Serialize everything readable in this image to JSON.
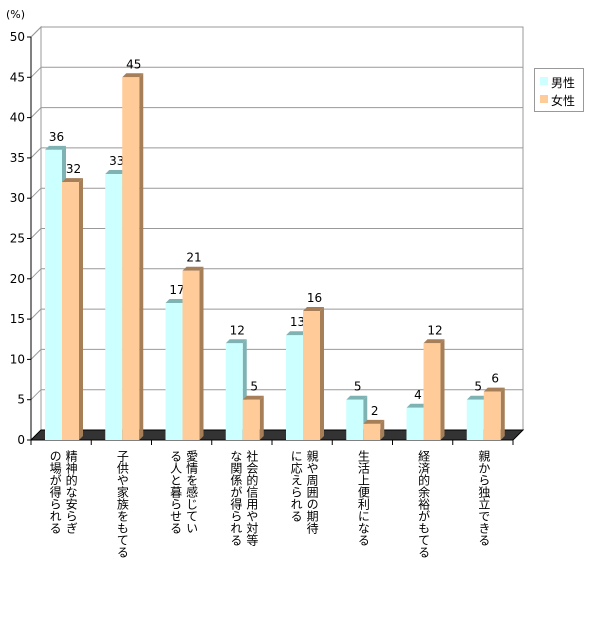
{
  "chart_data": {
    "type": "bar",
    "ylabel": "(%)",
    "ylim": [
      0,
      50
    ],
    "yticks": [
      "0",
      "5",
      "10",
      "15",
      "20",
      "25",
      "30",
      "35",
      "40",
      "45",
      "50"
    ],
    "categories": [
      [
        "の場が得られる",
        "精神的な安らぎ"
      ],
      [
        "子供や家族をもてる"
      ],
      [
        "る人と暮らせる",
        "愛情を感じてい"
      ],
      [
        "な関係が得られる",
        "社会的信用や対等"
      ],
      [
        "に応えられる",
        "親や周囲の期待"
      ],
      [
        "生活上便利になる"
      ],
      [
        "経済的余裕がもてる"
      ],
      [
        "親から独立できる"
      ]
    ],
    "series": [
      {
        "name": "男性",
        "color": "#CCFFFF",
        "side": "#7FB3B3",
        "values": [
          36,
          33,
          17,
          12,
          13,
          5,
          4,
          5
        ]
      },
      {
        "name": "女性",
        "color": "#FFCC99",
        "side": "#A67F59",
        "values": [
          32,
          45,
          21,
          5,
          16,
          2,
          12,
          6
        ]
      }
    ],
    "grid": true,
    "legend": "right"
  }
}
